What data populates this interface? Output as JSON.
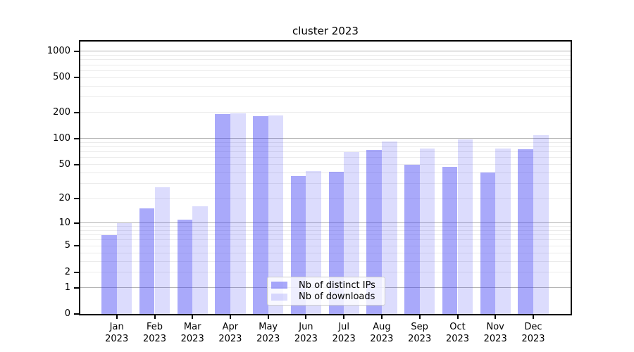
{
  "title": "cluster 2023",
  "legend": {
    "items": [
      {
        "label": "Nb of distinct IPs",
        "color": "rgba(64,64,245,0.45)"
      },
      {
        "label": "Nb of downloads",
        "color": "rgba(64,64,245,0.185)"
      }
    ]
  },
  "chart_data": {
    "type": "bar",
    "title": "cluster 2023",
    "categories": [
      "Jan 2023",
      "Feb 2023",
      "Mar 2023",
      "Apr 2023",
      "May 2023",
      "Jun 2023",
      "Jul 2023",
      "Aug 2023",
      "Sep 2023",
      "Oct 2023",
      "Nov 2023",
      "Dec 2023"
    ],
    "series": [
      {
        "name": "Nb of distinct IPs",
        "color": "rgba(64,64,245,0.45)",
        "values": [
          7,
          15,
          11,
          190,
          180,
          37,
          41,
          74,
          50,
          47,
          40,
          75
        ]
      },
      {
        "name": "Nb of downloads",
        "color": "rgba(64,64,245,0.185)",
        "values": [
          10,
          27,
          16,
          195,
          185,
          42,
          70,
          92,
          77,
          97,
          77,
          110
        ]
      }
    ],
    "xlabel": "",
    "ylabel": "",
    "yscale": "log1p",
    "ylim": [
      0,
      1290
    ],
    "yticks": [
      1000,
      500,
      200,
      100,
      50,
      20,
      10,
      5,
      2,
      1,
      0
    ],
    "yticks_major_grid": [
      1,
      10,
      100,
      1000
    ],
    "yticks_minor_grid": [
      2,
      3,
      4,
      5,
      6,
      7,
      8,
      9,
      20,
      30,
      40,
      50,
      60,
      70,
      80,
      90,
      200,
      300,
      400,
      500,
      600,
      700,
      800,
      900
    ],
    "grid": true,
    "legend_position": "lower center"
  }
}
